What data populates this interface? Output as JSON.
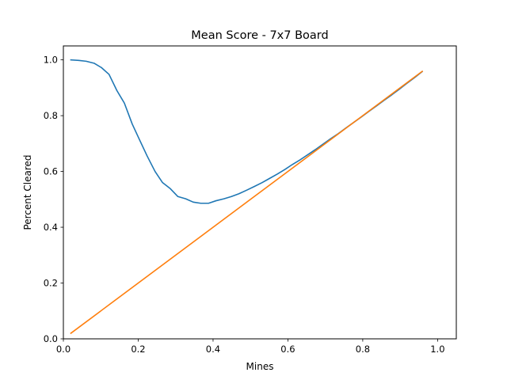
{
  "chart_data": {
    "type": "line",
    "title": "Mean Score - 7x7 Board",
    "xlabel": "Mines",
    "ylabel": "Percent Cleared",
    "xlim": [
      0.0,
      1.05
    ],
    "ylim": [
      0.0,
      1.05
    ],
    "xticks": [
      0.0,
      0.2,
      0.4,
      0.6,
      0.8,
      1.0
    ],
    "yticks": [
      0.0,
      0.2,
      0.4,
      0.6,
      0.8,
      1.0
    ],
    "grid": false,
    "legend": false,
    "series": [
      {
        "color": "#1f77b4",
        "x": [
          0.02,
          0.041,
          0.061,
          0.082,
          0.102,
          0.122,
          0.143,
          0.163,
          0.184,
          0.204,
          0.224,
          0.245,
          0.265,
          0.286,
          0.306,
          0.327,
          0.347,
          0.367,
          0.388,
          0.408,
          0.429,
          0.449,
          0.469,
          0.49,
          0.51,
          0.531,
          0.551,
          0.571,
          0.592,
          0.612,
          0.633,
          0.653,
          0.673,
          0.694,
          0.714,
          0.735,
          0.755,
          0.776,
          0.796,
          0.816,
          0.837,
          0.857,
          0.878,
          0.898,
          0.918,
          0.939,
          0.959
        ],
        "y": [
          1.0,
          0.998,
          0.995,
          0.988,
          0.972,
          0.948,
          0.89,
          0.845,
          0.77,
          0.712,
          0.655,
          0.6,
          0.56,
          0.538,
          0.51,
          0.502,
          0.49,
          0.486,
          0.486,
          0.495,
          0.502,
          0.51,
          0.52,
          0.533,
          0.546,
          0.56,
          0.575,
          0.59,
          0.607,
          0.625,
          0.642,
          0.66,
          0.678,
          0.698,
          0.717,
          0.736,
          0.756,
          0.776,
          0.795,
          0.815,
          0.835,
          0.855,
          0.875,
          0.895,
          0.916,
          0.937,
          0.958
        ]
      },
      {
        "color": "#ff7f0e",
        "x": [
          0.02,
          0.959
        ],
        "y": [
          0.02,
          0.959
        ]
      }
    ]
  }
}
